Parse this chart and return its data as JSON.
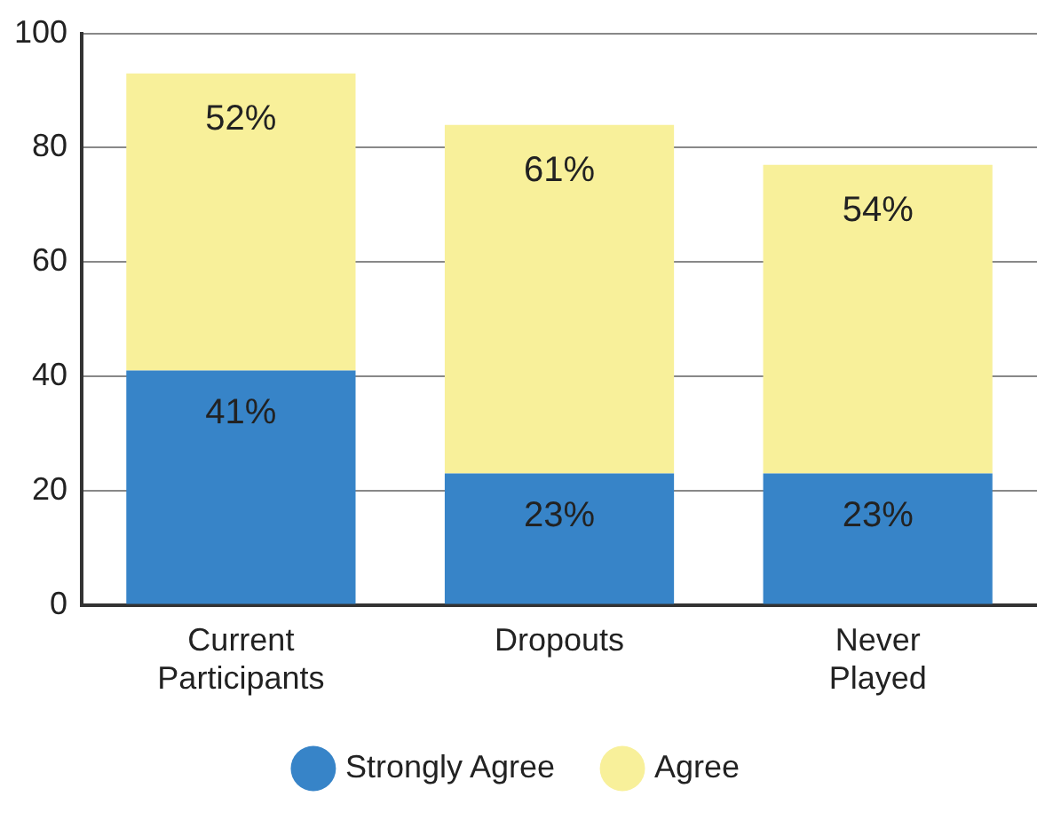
{
  "chart_data": {
    "type": "bar",
    "stacked": true,
    "categories": [
      "Current Participants",
      "Dropouts",
      "Never Played"
    ],
    "series": [
      {
        "name": "Strongly Agree",
        "color": "#3784c8",
        "values": [
          41,
          23,
          23
        ],
        "value_labels": [
          "41%",
          "23%",
          "23%"
        ]
      },
      {
        "name": "Agree",
        "color": "#f8f09a",
        "values": [
          52,
          61,
          54
        ],
        "value_labels": [
          "52%",
          "61%",
          "54%"
        ]
      }
    ],
    "ylim": [
      0,
      100
    ],
    "yticks": [
      0,
      20,
      40,
      60,
      80,
      100
    ],
    "grid": "y",
    "legend": "bottom"
  }
}
